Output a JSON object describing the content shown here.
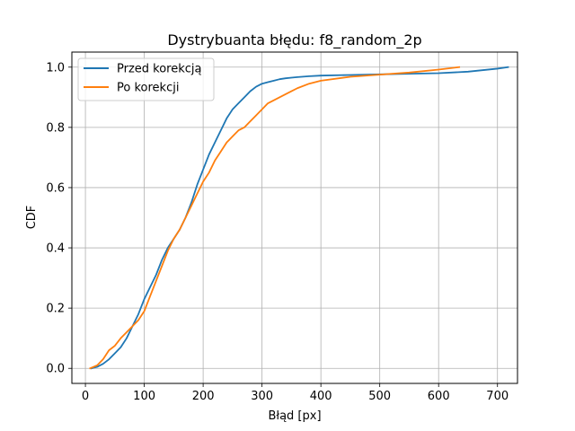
{
  "chart_data": {
    "type": "line",
    "title": "Dystrybuanta błędu: f8_random_2p",
    "xlabel": "Błąd [px]",
    "ylabel": "CDF",
    "xlim": [
      -23,
      734
    ],
    "ylim": [
      -0.05,
      1.05
    ],
    "xticks": [
      0,
      100,
      200,
      300,
      400,
      500,
      600,
      700
    ],
    "yticks": [
      0.0,
      0.2,
      0.4,
      0.6,
      0.8,
      1.0
    ],
    "xtick_labels": [
      "0",
      "100",
      "200",
      "300",
      "400",
      "500",
      "600",
      "700"
    ],
    "ytick_labels": [
      "0.0",
      "0.2",
      "0.4",
      "0.6",
      "0.8",
      "1.0"
    ],
    "grid": true,
    "legend_position": "top-left",
    "series": [
      {
        "name": "Przed korekcją",
        "color": "#1f77b4",
        "x": [
          10,
          20,
          30,
          40,
          50,
          60,
          70,
          80,
          90,
          100,
          110,
          120,
          130,
          140,
          150,
          160,
          170,
          180,
          190,
          200,
          210,
          220,
          230,
          240,
          250,
          260,
          270,
          280,
          290,
          300,
          310,
          320,
          330,
          340,
          350,
          360,
          380,
          400,
          450,
          500,
          550,
          600,
          650,
          700,
          718
        ],
        "y": [
          0.0,
          0.005,
          0.015,
          0.03,
          0.05,
          0.07,
          0.1,
          0.14,
          0.18,
          0.23,
          0.27,
          0.31,
          0.36,
          0.4,
          0.43,
          0.46,
          0.5,
          0.55,
          0.61,
          0.66,
          0.71,
          0.75,
          0.79,
          0.83,
          0.86,
          0.88,
          0.9,
          0.92,
          0.935,
          0.945,
          0.95,
          0.955,
          0.96,
          0.963,
          0.965,
          0.967,
          0.97,
          0.972,
          0.974,
          0.976,
          0.978,
          0.98,
          0.985,
          0.995,
          1.0
        ]
      },
      {
        "name": "Po korekcji",
        "color": "#ff7f0e",
        "x": [
          8,
          20,
          30,
          40,
          50,
          60,
          70,
          80,
          90,
          100,
          110,
          120,
          130,
          140,
          150,
          160,
          170,
          180,
          190,
          200,
          210,
          220,
          230,
          240,
          250,
          260,
          270,
          280,
          290,
          300,
          310,
          320,
          330,
          340,
          350,
          360,
          380,
          400,
          450,
          500,
          550,
          600,
          635
        ],
        "y": [
          0.0,
          0.01,
          0.03,
          0.06,
          0.075,
          0.1,
          0.12,
          0.14,
          0.16,
          0.19,
          0.24,
          0.29,
          0.34,
          0.39,
          0.43,
          0.46,
          0.5,
          0.54,
          0.58,
          0.62,
          0.65,
          0.69,
          0.72,
          0.75,
          0.77,
          0.79,
          0.8,
          0.82,
          0.84,
          0.86,
          0.88,
          0.89,
          0.9,
          0.91,
          0.92,
          0.93,
          0.945,
          0.955,
          0.968,
          0.975,
          0.982,
          0.992,
          1.0
        ]
      }
    ]
  }
}
